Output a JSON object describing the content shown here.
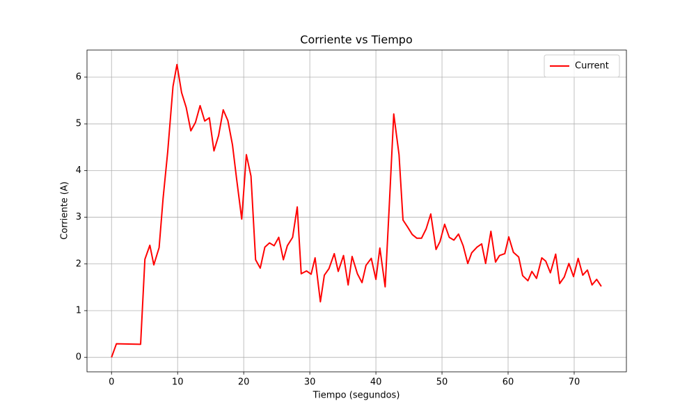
{
  "chart_data": {
    "type": "line",
    "title": "Corriente vs Tiempo",
    "xlabel": "Tiempo (segundos)",
    "ylabel": "Corriente (A)",
    "xlim": [
      -3.71,
      77.9
    ],
    "ylim": [
      -0.31,
      6.58
    ],
    "xticks": [
      0,
      10,
      20,
      30,
      40,
      50,
      60,
      70
    ],
    "yticks": [
      0,
      1,
      2,
      3,
      4,
      5,
      6
    ],
    "grid": true,
    "legend": "upper right",
    "x": [
      0,
      0.74,
      4.4,
      5.05,
      5.8,
      6.4,
      7.2,
      7.8,
      8.5,
      9.3,
      9.9,
      10.6,
      11.3,
      12.0,
      12.7,
      13.4,
      14.1,
      14.8,
      15.5,
      16.2,
      16.9,
      17.6,
      18.3,
      18.9,
      19.7,
      20.4,
      21.1,
      21.8,
      22.5,
      23.2,
      23.9,
      24.6,
      25.3,
      26.0,
      26.6,
      27.4,
      28.1,
      28.7,
      29.5,
      30.2,
      30.8,
      31.6,
      32.2,
      32.9,
      33.7,
      34.3,
      35.1,
      35.8,
      36.4,
      37.2,
      37.9,
      38.5,
      39.3,
      40.0,
      40.6,
      41.4,
      42.0,
      42.7,
      43.5,
      44.1,
      44.8,
      45.5,
      46.2,
      46.9,
      47.6,
      48.3,
      49.1,
      49.7,
      50.4,
      51.1,
      51.8,
      52.5,
      53.2,
      53.9,
      54.5,
      55.3,
      56.0,
      56.6,
      57.4,
      58.1,
      58.7,
      59.5,
      60.1,
      60.8,
      61.6,
      62.2,
      63.0,
      63.6,
      64.3,
      65.1,
      65.7,
      66.4,
      67.2,
      67.8,
      68.5,
      69.2,
      69.9,
      70.6,
      71.3,
      72.0,
      72.7,
      73.4,
      74.1
    ],
    "series": [
      {
        "name": "Current",
        "color": "#ff0000",
        "values": [
          0,
          0.29,
          0.28,
          2.1,
          2.4,
          1.98,
          2.35,
          3.4,
          4.4,
          5.8,
          6.27,
          5.67,
          5.35,
          4.85,
          5.03,
          5.39,
          5.06,
          5.13,
          4.42,
          4.75,
          5.3,
          5.07,
          4.55,
          3.85,
          2.96,
          4.34,
          3.88,
          2.09,
          1.91,
          2.36,
          2.45,
          2.39,
          2.57,
          2.09,
          2.39,
          2.57,
          3.22,
          1.79,
          1.85,
          1.78,
          2.13,
          1.19,
          1.76,
          1.9,
          2.22,
          1.84,
          2.18,
          1.55,
          2.16,
          1.79,
          1.6,
          1.97,
          2.12,
          1.67,
          2.34,
          1.51,
          3.18,
          5.21,
          4.34,
          2.94,
          2.79,
          2.63,
          2.55,
          2.55,
          2.75,
          3.07,
          2.31,
          2.48,
          2.85,
          2.57,
          2.51,
          2.64,
          2.39,
          2.01,
          2.24,
          2.36,
          2.43,
          2.01,
          2.7,
          2.04,
          2.18,
          2.22,
          2.58,
          2.25,
          2.15,
          1.75,
          1.64,
          1.84,
          1.69,
          2.13,
          2.06,
          1.81,
          2.21,
          1.58,
          1.72,
          2.01,
          1.73,
          2.12,
          1.76,
          1.87,
          1.55,
          1.67,
          1.52
        ]
      }
    ]
  }
}
